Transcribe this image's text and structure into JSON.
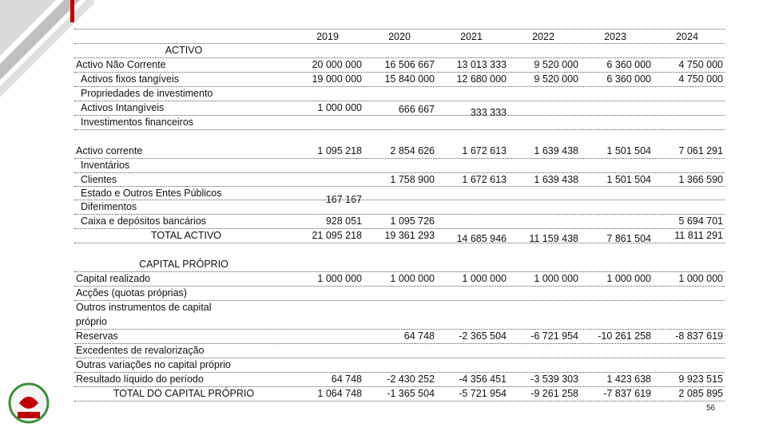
{
  "table": {
    "years": [
      "2019",
      "2020",
      "2021",
      "2022",
      "2023",
      "2024"
    ],
    "rows": [
      {
        "label": "ACTIVO",
        "cells": [
          null,
          null,
          null,
          null,
          null,
          null
        ]
      },
      {
        "label": "Activo Não Corrente",
        "cells": [
          "20 000 000",
          "16 506 667",
          "13 013 333",
          "9 520 000",
          "6 360 000",
          "4 750 000"
        ]
      },
      {
        "label": "Activos fixos tangíveis",
        "cells": [
          "19 000 000",
          "15 840 000",
          "12 680 000",
          "9 520 000",
          "6 360 000",
          "4 750 000"
        ]
      },
      {
        "label": "Propriedades de investimento",
        "cells": [
          null,
          null,
          null,
          null,
          null,
          null
        ]
      },
      {
        "label": "Activos Intangíveis",
        "cells": [
          "1 000 000",
          "666 667",
          "333 333",
          null,
          null,
          null
        ]
      },
      {
        "label": "Investimentos financeiros",
        "cells": [
          null,
          null,
          null,
          null,
          null,
          null
        ]
      },
      {
        "label": "Activo corrente",
        "cells": [
          "1 095 218",
          "2 854 626",
          "1 672 613",
          "1 639 438",
          "1 501 504",
          "7 061 291"
        ]
      },
      {
        "label": "Inventários",
        "cells": [
          null,
          null,
          null,
          null,
          null,
          null
        ]
      },
      {
        "label": "Clientes",
        "cells": [
          null,
          "1 758 900",
          "1 672 613",
          "1 639 438",
          "1 501 504",
          "1 366 590"
        ]
      },
      {
        "label": "Estado e Outros Entes Públicos",
        "cells": [
          "167 167",
          null,
          null,
          null,
          null,
          null
        ]
      },
      {
        "label": "Diferimentos",
        "cells": [
          null,
          null,
          null,
          null,
          null,
          null
        ]
      },
      {
        "label": "Caixa e depósitos bancários",
        "cells": [
          "928 051",
          "1 095 726",
          null,
          null,
          null,
          "5 694 701"
        ]
      },
      {
        "label": "TOTAL ACTIVO",
        "cells": [
          "21 095 218",
          "19 361 293",
          "14 685 946",
          "11 159 438",
          "7 861 504",
          "11 811 291"
        ]
      },
      {
        "label": "CAPITAL PRÓPRIO",
        "cells": [
          null,
          null,
          null,
          null,
          null,
          null
        ]
      },
      {
        "label": "Capital realizado",
        "cells": [
          "1 000 000",
          "1 000 000",
          "1 000 000",
          "1 000 000",
          "1 000 000",
          "1 000 000"
        ]
      },
      {
        "label": "Acções (quotas próprias)",
        "cells": [
          null,
          null,
          null,
          null,
          null,
          null
        ]
      },
      {
        "label": "Outros instrumentos de capital próprio",
        "cells": [
          null,
          null,
          null,
          null,
          null,
          null
        ]
      },
      {
        "label": "Reservas",
        "cells": [
          null,
          "64 748",
          "-2 365 504",
          "-6 721 954",
          "-10 261 258",
          "-8 837 619"
        ]
      },
      {
        "label": "Excedentes de revalorização",
        "cells": [
          null,
          null,
          null,
          null,
          null,
          null
        ]
      },
      {
        "label": "Outras variações no capital próprio",
        "cells": [
          null,
          null,
          null,
          null,
          null,
          null
        ]
      },
      {
        "label": "Resultado líquido do período",
        "cells": [
          "64 748",
          "-2 430 252",
          "-4 356 451",
          "-3 539 303",
          "1 423 638",
          "9 923 515"
        ]
      },
      {
        "label": "TOTAL DO CAPITAL PRÓPRIO",
        "cells": [
          "1 064 748",
          "-1 365 504",
          "-5 721 954",
          "-9 261 258",
          "-7 837 619",
          "2 085 895"
        ]
      }
    ]
  },
  "page_number": "56"
}
